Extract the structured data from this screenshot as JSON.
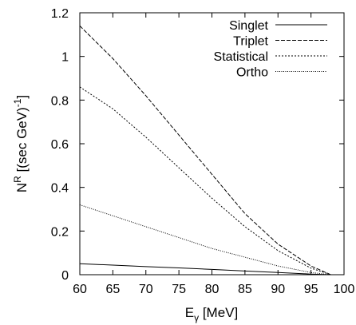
{
  "chart_data": {
    "type": "line",
    "title": "",
    "xlabel": {
      "main": "E",
      "sub": "γ",
      "rest": " [MeV]"
    },
    "ylabel": {
      "main": "N",
      "sup": "R",
      "rest": " [(sec GeV)",
      "sup2": "-1",
      "end": "]"
    },
    "xlim": [
      60,
      100
    ],
    "ylim": [
      0,
      1.2
    ],
    "xticks": [
      60,
      65,
      70,
      75,
      80,
      85,
      90,
      95,
      100
    ],
    "yticks": [
      0,
      0.2,
      0.4,
      0.6,
      0.8,
      1,
      1.2
    ],
    "ytick_labels": [
      "0",
      "0.2",
      "0.4",
      "0.6",
      "0.8",
      "1",
      "1.2"
    ],
    "legend_position": "top-right",
    "grid": false,
    "series": [
      {
        "name": "Singlet",
        "style": "solid",
        "x": [
          60,
          65,
          70,
          75,
          80,
          85,
          90,
          95,
          98
        ],
        "y": [
          0.05,
          0.044,
          0.037,
          0.031,
          0.024,
          0.017,
          0.01,
          0.003,
          0
        ]
      },
      {
        "name": "Triplet",
        "style": "dashed",
        "x": [
          60,
          65,
          70,
          75,
          80,
          85,
          90,
          95,
          98
        ],
        "y": [
          1.14,
          0.99,
          0.82,
          0.64,
          0.46,
          0.28,
          0.14,
          0.04,
          0
        ]
      },
      {
        "name": "Statistical",
        "style": "dotted",
        "x": [
          60,
          65,
          70,
          75,
          80,
          85,
          90,
          95,
          98
        ],
        "y": [
          0.86,
          0.76,
          0.63,
          0.49,
          0.35,
          0.22,
          0.11,
          0.03,
          0
        ]
      },
      {
        "name": "Ortho",
        "style": "fine-dotted",
        "x": [
          60,
          65,
          70,
          75,
          80,
          85,
          90,
          95,
          98
        ],
        "y": [
          0.32,
          0.27,
          0.22,
          0.17,
          0.12,
          0.08,
          0.04,
          0.01,
          0
        ]
      }
    ]
  }
}
